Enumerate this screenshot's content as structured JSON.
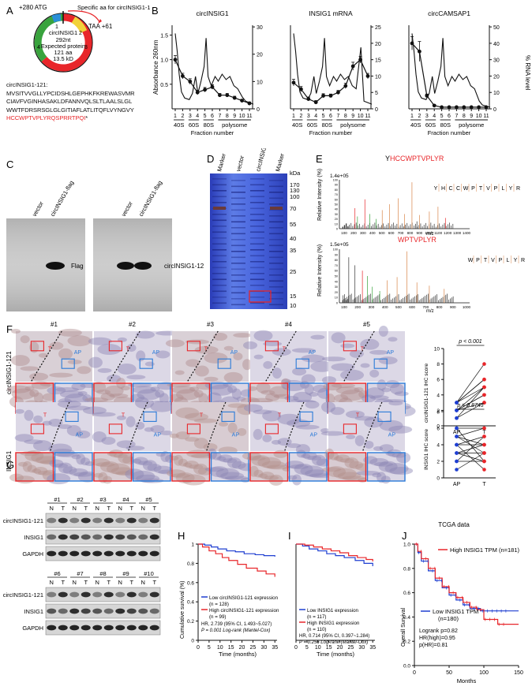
{
  "panels": {
    "A": "A",
    "B": "B",
    "C": "C",
    "D": "D",
    "E": "E",
    "F": "F",
    "G": "G",
    "H": "H",
    "I": "I",
    "J": "J"
  },
  "panel_a": {
    "atg": "+280 ATG",
    "specific_aa": "Specific aa for circINSIG1-121",
    "taa": "TAA +61",
    "center": [
      "circINSIG1",
      "292nt",
      "Expected protein",
      "121 aa",
      "13.5 kD"
    ],
    "exon_numbers": [
      "1",
      "2",
      "3",
      "4"
    ],
    "seq_title": "circINSIG1-121:",
    "seq_lines": [
      "MVSITVVGLLYPCIDSHLGEPHKFKREWASVMR",
      "CIAVFVGINHASAKLDFANNVQLSLTLAALSLGL",
      "WWTFDRSRSGLGLGITIAFLATLITQFLVYNGVY"
    ],
    "seq_red": "HCCWPTVPLYRQSPRRTPQI",
    "seq_star": "*"
  },
  "panel_b": {
    "titles": [
      "circINSIG1",
      "INSIG1 mRNA",
      "circCAMSAP1"
    ],
    "left_axis": "Absorbance 260nm",
    "right_axis": "% RNA level",
    "fractions": [
      "1",
      "2",
      "3",
      "4",
      "5",
      "6",
      "7",
      "8",
      "9",
      "10",
      "11"
    ],
    "groups": [
      "40S",
      "60S",
      "80S",
      "polysome"
    ],
    "xlabel": "Fraction number",
    "yticks_left": [
      "0.5",
      "1.0",
      "1.5"
    ],
    "yticks_right_1": [
      "0",
      "10",
      "20",
      "30"
    ],
    "yticks_right_2": [
      "0",
      "5",
      "10",
      "15",
      "20",
      "25"
    ],
    "yticks_right_3": [
      "0",
      "10",
      "20",
      "30",
      "40",
      "50"
    ]
  },
  "panel_c": {
    "lanes_left": [
      "vector",
      "circINSIG1-flag"
    ],
    "lanes_right": [
      "vector",
      "circINSIG1-flag"
    ],
    "label_left": "Flag",
    "label_right": "circINSIG1-121"
  },
  "panel_d": {
    "lanes": [
      "Marker",
      "vector",
      "circINSIG1",
      "Marker"
    ],
    "kda": "kDa",
    "markers": [
      "170",
      "130",
      "100",
      "70",
      "55",
      "40",
      "35",
      "25",
      "15",
      "10"
    ]
  },
  "panel_e": {
    "pep1_prefix": "Y",
    "pep1_red": "HCCWPTVPLYR",
    "pep2": "WPTVPLYR",
    "scale1": "1.4e+05",
    "scale2": "1.5e+05",
    "ylabel": "Relative Intensity (%)",
    "xlabel": "m/z",
    "seq1": [
      "Y",
      "H",
      "C",
      "C",
      "W",
      "P",
      "T",
      "V",
      "P",
      "L",
      "Y",
      "R"
    ],
    "seq2": [
      "W",
      "P",
      "T",
      "V",
      "P",
      "L",
      "Y",
      "R"
    ],
    "xticks1": [
      "100",
      "200",
      "300",
      "400",
      "500",
      "600",
      "700",
      "800",
      "900",
      "1000",
      "1100",
      "1200",
      "1300",
      "1400"
    ],
    "xticks2": [
      "100",
      "200",
      "300",
      "400",
      "500",
      "600",
      "700",
      "800",
      "900",
      "1000"
    ]
  },
  "panel_f": {
    "cases": [
      "#1",
      "#2",
      "#3",
      "#4",
      "#5"
    ],
    "row1_label": "circINSIG1-121",
    "row2_label": "INSIG1",
    "T": "T",
    "AP": "AP",
    "p1": "p < 0.001",
    "p2": "p = 0.8743",
    "ylabel1": "circINSIG1-121 IHC score",
    "ylabel2": "INSIG1 IHC score",
    "x_ap": "AP",
    "x_t": "T",
    "yticks": [
      "0",
      "2",
      "4",
      "6",
      "8",
      "10"
    ],
    "yticks2": [
      "0",
      "2",
      "4",
      "6",
      "8"
    ]
  },
  "panel_g": {
    "cases_top": [
      "#1",
      "#2",
      "#3",
      "#4",
      "#5"
    ],
    "cases_bottom": [
      "#6",
      "#7",
      "#8",
      "#9",
      "#10"
    ],
    "nt": [
      "N",
      "T"
    ],
    "rows": [
      "circINSIG1-121",
      "INSIG1",
      "GAPDH"
    ]
  },
  "panel_h": {
    "ylabel": "Cumulative survival (%)",
    "xlabel": "Time (months)",
    "legend_low": "Low circINSIG1-121 expression",
    "legend_low_n": "(n = 128)",
    "legend_high": "High circINSIG1-121 expression",
    "legend_high_n": "(n = 99)",
    "stat1": "HR, 2.739 (95% CI, 1.493~5.027)",
    "stat2": "P = 0.001 Log-rank (Mantel-Cox)",
    "xticks": [
      "0",
      "5",
      "10",
      "15",
      "20",
      "25",
      "30",
      "35"
    ],
    "yticks": [
      "0",
      "0.2",
      "0.4",
      "0.6",
      "0.8",
      "1.0"
    ]
  },
  "panel_i": {
    "xlabel": "Time (months)",
    "legend_low": "Low INSIG1 expression",
    "legend_low_n": "(n = 117)",
    "legend_high": "High INSIG1 expression",
    "legend_high_n": "(n = 110)",
    "stat1": "HR, 0.714 (95% CI, 0.397~1.284)",
    "stat2": "P = 0.256 Log-rank (Mantel-Cox)",
    "xticks": [
      "0",
      "5",
      "10",
      "15",
      "20",
      "25",
      "30",
      "35"
    ]
  },
  "panel_j": {
    "title": "TCGA data",
    "legend_high": "High INSIG1 TPM (n=181)",
    "legend_low": "Low INSIG1 TPM",
    "legend_low_n": "(n=180)",
    "stat1": "Logrank p=0.82",
    "stat2": "HR(high)=0.95",
    "stat3": "p(HR)=0.81",
    "ylabel": "Overall Survival",
    "xlabel": "Months",
    "xticks": [
      "0",
      "50",
      "100",
      "150"
    ],
    "yticks": [
      "0.0",
      "0.2",
      "0.4",
      "0.6",
      "0.8",
      "1.0"
    ]
  },
  "colors": {
    "red": "#e8262a",
    "blue": "#1f3fd1",
    "green": "#39a33d",
    "orange": "#d9864a"
  }
}
